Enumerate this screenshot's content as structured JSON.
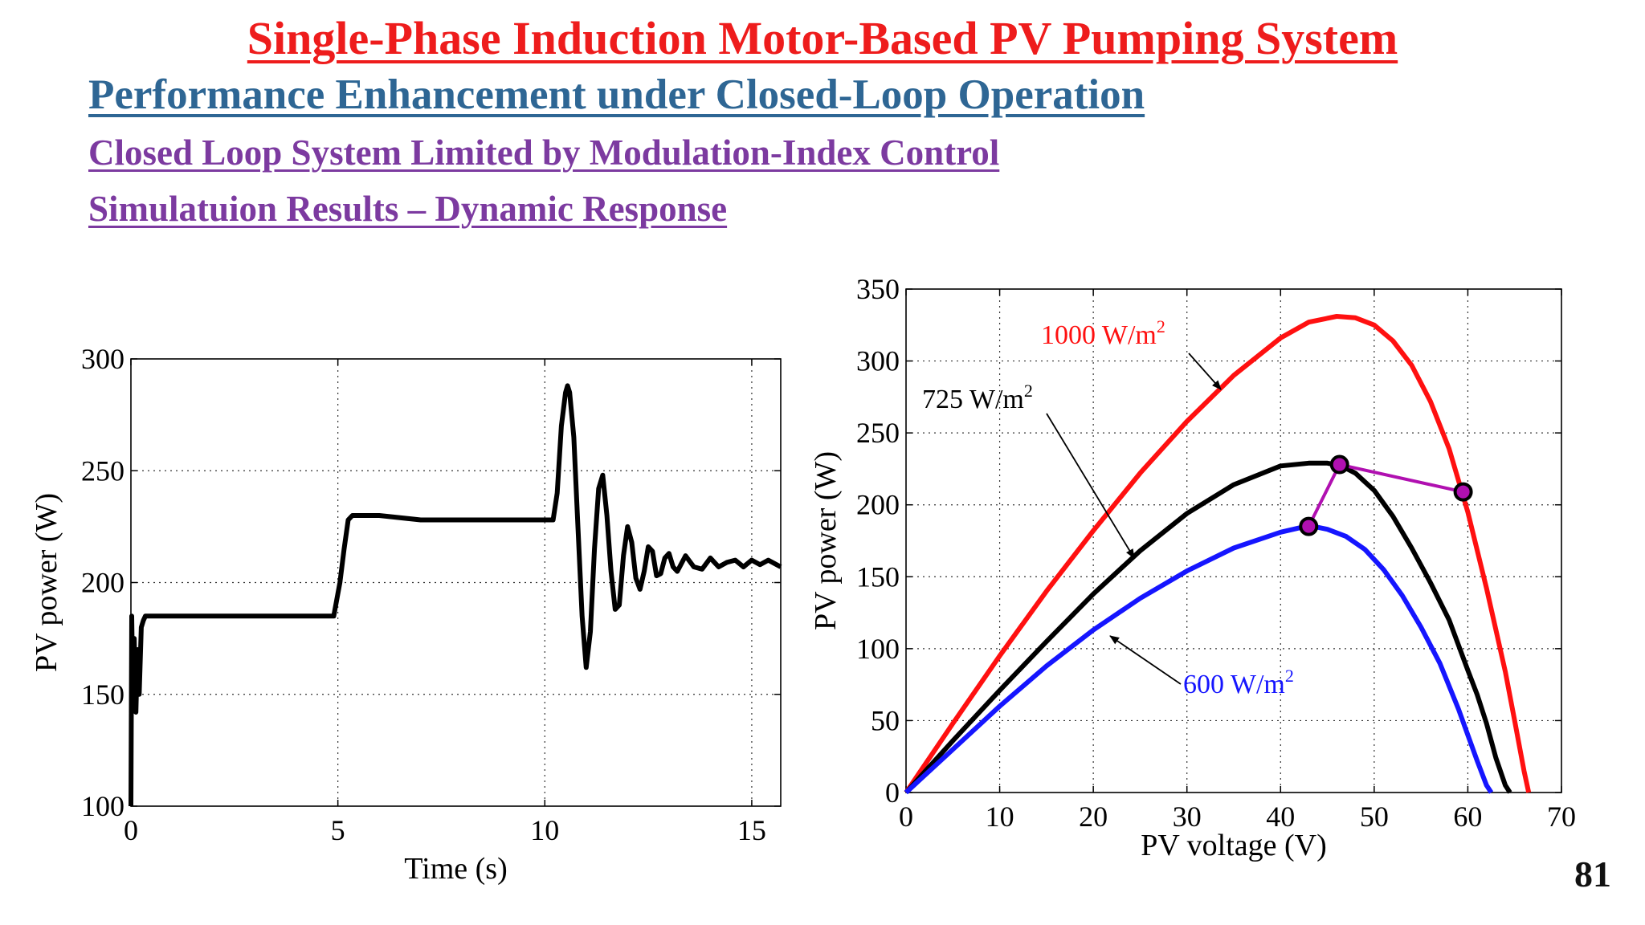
{
  "slide": {
    "title": "Single-Phase Induction Motor-Based PV Pumping System",
    "subtitle": "Performance Enhancement under Closed-Loop Operation",
    "section": "Closed Loop System Limited by Modulation-Index Control",
    "subsection": "Simulatuion Results – Dynamic Response",
    "page_number": "81"
  },
  "colors": {
    "title": "#ee1c1c",
    "subtitle": "#2e6694",
    "section": "#7c3aa0",
    "curve_1000": "#ff1010",
    "curve_725": "#000000",
    "curve_600": "#1515ff",
    "operating_point": "#b010b0"
  },
  "chart_data": [
    {
      "type": "line",
      "xlabel": "Time (s)",
      "ylabel": "PV power (W)",
      "xlim": [
        0,
        15.7
      ],
      "ylim": [
        100,
        300
      ],
      "xticks": [
        0,
        5,
        10,
        15
      ],
      "xtick_labels": [
        "0",
        "5",
        "10",
        "15"
      ],
      "yticks": [
        100,
        150,
        200,
        250,
        300
      ],
      "ytick_labels": [
        "100",
        "150",
        "200",
        "250",
        "300"
      ],
      "grid": true,
      "series": [
        {
          "x": [
            0,
            0.02,
            0.05,
            0.08,
            0.12,
            0.16,
            0.2,
            0.25,
            0.3,
            0.35,
            0.4,
            1,
            2,
            3,
            4,
            4.9,
            5.05,
            5.15,
            5.25,
            5.35,
            6,
            7,
            8,
            9,
            10,
            10.2,
            10.3,
            10.4,
            10.5,
            10.55,
            10.6,
            10.7,
            10.8,
            10.9,
            11.0,
            11.1,
            11.2,
            11.3,
            11.4,
            11.5,
            11.6,
            11.7,
            11.8,
            11.9,
            12.0,
            12.1,
            12.2,
            12.3,
            12.4,
            12.5,
            12.6,
            12.7,
            12.8,
            12.9,
            13.0,
            13.1,
            13.2,
            13.4,
            13.6,
            13.8,
            14.0,
            14.2,
            14.4,
            14.6,
            14.8,
            15.0,
            15.2,
            15.4,
            15.7
          ],
          "y": [
            100,
            185,
            145,
            175,
            142,
            170,
            150,
            180,
            183,
            185,
            185,
            185,
            185,
            185,
            185,
            185,
            200,
            215,
            228,
            230,
            230,
            228,
            228,
            228,
            228,
            228,
            240,
            270,
            285,
            288,
            285,
            265,
            225,
            185,
            162,
            178,
            215,
            242,
            248,
            230,
            205,
            188,
            190,
            212,
            225,
            218,
            202,
            197,
            205,
            216,
            214,
            203,
            204,
            211,
            213,
            207,
            205,
            212,
            207,
            206,
            211,
            207,
            209,
            210,
            207,
            210,
            208,
            210,
            207
          ]
        }
      ]
    },
    {
      "type": "line",
      "xlabel": "PV voltage (V)",
      "ylabel": "PV power (W)",
      "xlim": [
        0,
        70
      ],
      "ylim": [
        0,
        350
      ],
      "xticks": [
        0,
        10,
        20,
        30,
        40,
        50,
        60,
        70
      ],
      "xtick_labels": [
        "0",
        "10",
        "20",
        "30",
        "40",
        "50",
        "60",
        "70"
      ],
      "yticks": [
        0,
        50,
        100,
        150,
        200,
        250,
        300,
        350
      ],
      "ytick_labels": [
        "0",
        "50",
        "100",
        "150",
        "200",
        "250",
        "300",
        "350"
      ],
      "grid": true,
      "series": [
        {
          "name": "1000 W/m2",
          "x": [
            0,
            5,
            10,
            15,
            20,
            25,
            30,
            35,
            40,
            43,
            46,
            48,
            50,
            52,
            54,
            56,
            58,
            60,
            62,
            64,
            65,
            66,
            66.5
          ],
          "y": [
            0,
            48,
            95,
            140,
            182,
            222,
            258,
            290,
            316,
            327,
            331,
            330,
            325,
            314,
            297,
            272,
            239,
            195,
            142,
            84,
            50,
            15,
            0
          ]
        },
        {
          "name": "725 W/m2",
          "x": [
            0,
            5,
            10,
            15,
            20,
            25,
            30,
            35,
            40,
            43,
            45,
            46.5,
            48,
            50,
            52,
            54,
            56,
            58,
            60,
            61,
            62,
            63,
            64,
            64.5
          ],
          "y": [
            0,
            36,
            71,
            105,
            138,
            168,
            194,
            214,
            227,
            229,
            229,
            227,
            222,
            210,
            192,
            170,
            146,
            120,
            85,
            68,
            48,
            24,
            5,
            0
          ]
        },
        {
          "name": "600 W/m2",
          "x": [
            0,
            5,
            10,
            15,
            20,
            25,
            30,
            35,
            40,
            42,
            43.5,
            45,
            47,
            49,
            51,
            53,
            55,
            57,
            59,
            60,
            61,
            62,
            62.5
          ],
          "y": [
            0,
            30,
            60,
            88,
            113,
            135,
            154,
            170,
            181,
            184,
            185,
            183,
            178,
            169,
            155,
            137,
            115,
            90,
            58,
            40,
            22,
            5,
            0
          ]
        },
        {
          "name": "operating point trajectory",
          "x": [
            43,
            46.3,
            59.5
          ],
          "y": [
            185,
            228,
            209
          ]
        }
      ],
      "annotations": [
        {
          "text": "1000 W/m",
          "sup": "2",
          "color": "#ff1010"
        },
        {
          "text": "725 W/m",
          "sup": "2",
          "color": "#000000"
        },
        {
          "text": "600 W/m",
          "sup": "2",
          "color": "#1515ff"
        }
      ]
    }
  ]
}
